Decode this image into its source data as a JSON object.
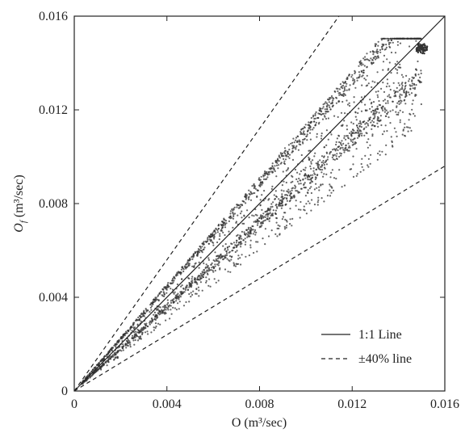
{
  "chart_data": {
    "type": "scatter",
    "xlabel": "O (m³/sec)",
    "ylabel": "O_f (m³/sec)",
    "xlim": [
      0,
      0.016
    ],
    "ylim": [
      0,
      0.016
    ],
    "xticks": [
      "0",
      "0.004",
      "0.008",
      "0.012",
      "0.016"
    ],
    "yticks": [
      "0",
      "0.004",
      "0.008",
      "0.012",
      "0.016"
    ],
    "grid": false,
    "legend_position": "bottom-right",
    "legend": [
      {
        "label": "1:1 Line",
        "style": "solid"
      },
      {
        "label": "±40% line",
        "style": "dashed"
      }
    ],
    "reference_lines": [
      {
        "name": "1:1 Line",
        "slope": 1.0,
        "style": "solid"
      },
      {
        "name": "+40% line",
        "slope": 1.4,
        "style": "dashed"
      },
      {
        "name": "-40% line",
        "slope": 0.6,
        "style": "dashed"
      }
    ],
    "scatter_band": {
      "x_range": [
        0.0003,
        0.015
      ],
      "upper_edge_ratio": 1.14,
      "lower_edge_ratio": 0.87,
      "peak_point": [
        0.015,
        0.015
      ]
    },
    "colors": {
      "points": "#333333",
      "axes": "#222222",
      "lines": "#222222"
    }
  }
}
